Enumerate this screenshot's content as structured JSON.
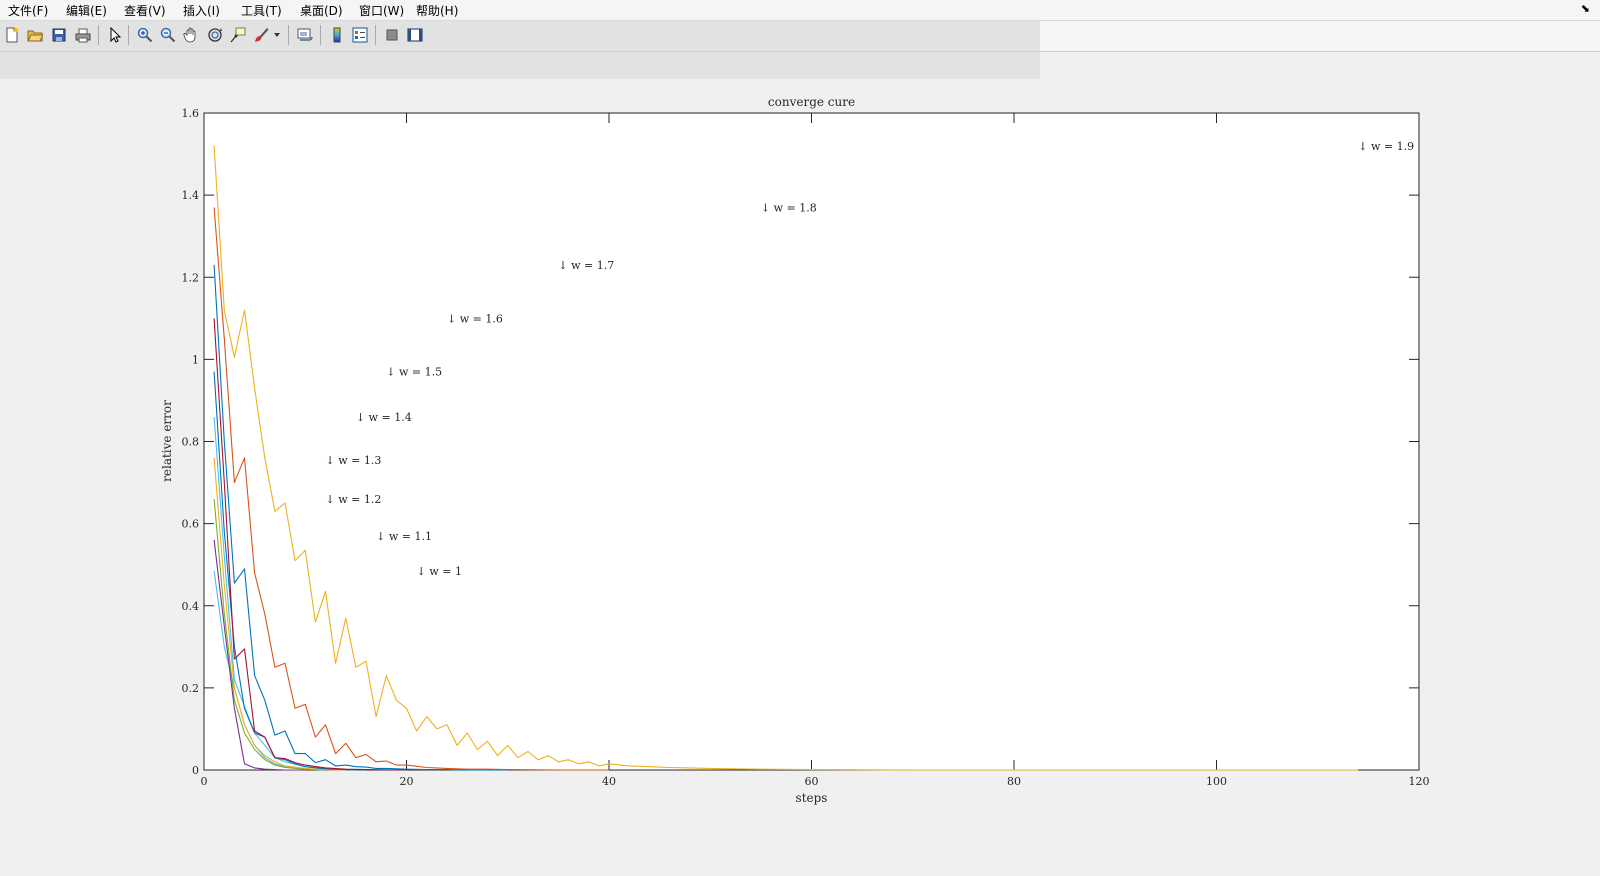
{
  "menu": {
    "items": [
      "文件(F)",
      "编辑(E)",
      "查看(V)",
      "插入(I)",
      "工具(T)",
      "桌面(D)",
      "窗口(W)",
      "帮助(H)"
    ]
  },
  "toolbar": {
    "buttons": [
      "new-figure-icon",
      "open-file-icon",
      "save-icon",
      "print-icon",
      "select-arrow-icon",
      "zoom-in-icon",
      "zoom-out-icon",
      "pan-icon",
      "rotate-3d-icon",
      "data-cursor-icon",
      "brush-icon",
      "link-plot-icon",
      "colorbar-icon",
      "legend-icon",
      "hide-plot-tools-icon",
      "show-plot-tools-icon"
    ]
  },
  "chart_data": {
    "type": "line",
    "title": "converge cure",
    "xlabel": "steps",
    "ylabel": "relative error",
    "xlim": [
      0,
      120
    ],
    "ylim": [
      0,
      1.6
    ],
    "xticks": [
      "0",
      "20",
      "40",
      "60",
      "80",
      "100",
      "120"
    ],
    "yticks": [
      "0",
      "0.2",
      "0.4",
      "0.6",
      "0.8",
      "1",
      "1.2",
      "1.4",
      "1.6"
    ],
    "grid": false,
    "series": [
      {
        "name": "w = 1",
        "color": "#4dbeee",
        "x": [
          1,
          2,
          3,
          4,
          5,
          6,
          7,
          8,
          10,
          12,
          14
        ],
        "y": [
          0.485,
          0.3,
          0.2,
          0.11,
          0.06,
          0.03,
          0.015,
          0.008,
          0.003,
          0.001,
          0.0
        ]
      },
      {
        "name": "w = 1.1",
        "color": "#7e2f8e",
        "x": [
          1,
          2,
          3,
          4,
          5,
          6,
          8,
          10
        ],
        "y": [
          0.56,
          0.35,
          0.15,
          0.015,
          0.005,
          0.002,
          0.0,
          0.0
        ]
      },
      {
        "name": "w = 1.2",
        "color": "#77ac30",
        "x": [
          1,
          2,
          3,
          4,
          5,
          6,
          7,
          8,
          10,
          12
        ],
        "y": [
          0.66,
          0.38,
          0.17,
          0.09,
          0.05,
          0.025,
          0.012,
          0.006,
          0.002,
          0.0
        ]
      },
      {
        "name": "w = 1.3",
        "color": "#edb120",
        "x": [
          1,
          2,
          3,
          4,
          5,
          6,
          7,
          8,
          10,
          12,
          14
        ],
        "y": [
          0.76,
          0.45,
          0.2,
          0.11,
          0.06,
          0.035,
          0.02,
          0.01,
          0.004,
          0.001,
          0.0
        ]
      },
      {
        "name": "w = 1.4",
        "color": "#4dbeee",
        "x": [
          1,
          2,
          3,
          4,
          5,
          6,
          7,
          8,
          10,
          12,
          15
        ],
        "y": [
          0.86,
          0.52,
          0.22,
          0.155,
          0.09,
          0.06,
          0.03,
          0.02,
          0.008,
          0.003,
          0.0
        ]
      },
      {
        "name": "w = 1.5",
        "color": "#0072bd",
        "x": [
          1,
          2,
          3,
          4,
          5,
          6,
          7,
          8,
          9,
          10,
          12,
          14,
          16
        ],
        "y": [
          0.97,
          0.58,
          0.3,
          0.15,
          0.09,
          0.08,
          0.03,
          0.025,
          0.015,
          0.008,
          0.003,
          0.001,
          0.0
        ]
      },
      {
        "name": "w = 1.6",
        "color": "#a2142f",
        "x": [
          1,
          2,
          3,
          4,
          5,
          6,
          7,
          8,
          9,
          10,
          12,
          14,
          16,
          20
        ],
        "y": [
          1.1,
          0.7,
          0.27,
          0.295,
          0.095,
          0.08,
          0.03,
          0.028,
          0.018,
          0.012,
          0.005,
          0.002,
          0.001,
          0.0
        ]
      },
      {
        "name": "w = 1.7",
        "color": "#0072bd",
        "x": [
          1,
          2,
          3,
          4,
          5,
          6,
          7,
          8,
          9,
          10,
          11,
          12,
          13,
          14,
          15,
          16,
          17,
          18,
          20,
          22,
          24,
          26,
          30
        ],
        "y": [
          1.23,
          0.8,
          0.455,
          0.49,
          0.23,
          0.17,
          0.085,
          0.095,
          0.04,
          0.04,
          0.018,
          0.025,
          0.01,
          0.012,
          0.008,
          0.007,
          0.004,
          0.004,
          0.002,
          0.001,
          0.001,
          0.0,
          0.0
        ]
      },
      {
        "name": "w = 1.8",
        "color": "#d95319",
        "x": [
          1,
          2,
          3,
          4,
          5,
          6,
          7,
          8,
          9,
          10,
          11,
          12,
          13,
          14,
          15,
          16,
          17,
          18,
          19,
          20,
          22,
          24,
          26,
          28,
          30,
          35,
          40
        ],
        "y": [
          1.37,
          1.05,
          0.7,
          0.76,
          0.48,
          0.38,
          0.25,
          0.26,
          0.15,
          0.16,
          0.08,
          0.11,
          0.04,
          0.065,
          0.03,
          0.038,
          0.02,
          0.022,
          0.012,
          0.012,
          0.006,
          0.004,
          0.002,
          0.002,
          0.001,
          0.0,
          0.0
        ]
      },
      {
        "name": "w = 1.9",
        "color": "#edb120",
        "x": [
          1,
          2,
          3,
          4,
          5,
          6,
          7,
          8,
          9,
          10,
          11,
          12,
          13,
          14,
          15,
          16,
          17,
          18,
          19,
          20,
          21,
          22,
          23,
          24,
          25,
          26,
          27,
          28,
          29,
          30,
          31,
          32,
          33,
          34,
          35,
          36,
          37,
          38,
          39,
          40,
          42,
          44,
          46,
          48,
          50,
          52,
          55,
          60,
          70,
          80,
          100,
          114
        ],
        "y": [
          1.52,
          1.12,
          1.005,
          1.12,
          0.93,
          0.76,
          0.63,
          0.65,
          0.51,
          0.535,
          0.36,
          0.435,
          0.26,
          0.37,
          0.25,
          0.265,
          0.13,
          0.23,
          0.17,
          0.15,
          0.095,
          0.13,
          0.1,
          0.11,
          0.06,
          0.09,
          0.05,
          0.07,
          0.035,
          0.06,
          0.03,
          0.045,
          0.025,
          0.035,
          0.02,
          0.025,
          0.015,
          0.02,
          0.01,
          0.015,
          0.01,
          0.008,
          0.006,
          0.005,
          0.004,
          0.003,
          0.002,
          0.001,
          0.0,
          0.0,
          0.0,
          0.0
        ]
      }
    ],
    "annotations": [
      {
        "text": "↓ w = 1.9",
        "x": 114,
        "y": 1.52
      },
      {
        "text": "↓ w = 1.8",
        "x": 55,
        "y": 1.37
      },
      {
        "text": "↓ w = 1.7",
        "x": 35,
        "y": 1.23
      },
      {
        "text": "↓ w = 1.6",
        "x": 24,
        "y": 1.1
      },
      {
        "text": "↓ w = 1.5",
        "x": 18,
        "y": 0.97
      },
      {
        "text": "↓ w = 1.4",
        "x": 15,
        "y": 0.86
      },
      {
        "text": "↓ w = 1.3",
        "x": 12,
        "y": 0.755
      },
      {
        "text": "↓ w = 1.2",
        "x": 12,
        "y": 0.66
      },
      {
        "text": "↓ w = 1.1",
        "x": 17,
        "y": 0.57
      },
      {
        "text": "↓ w = 1",
        "x": 21,
        "y": 0.485
      }
    ]
  }
}
